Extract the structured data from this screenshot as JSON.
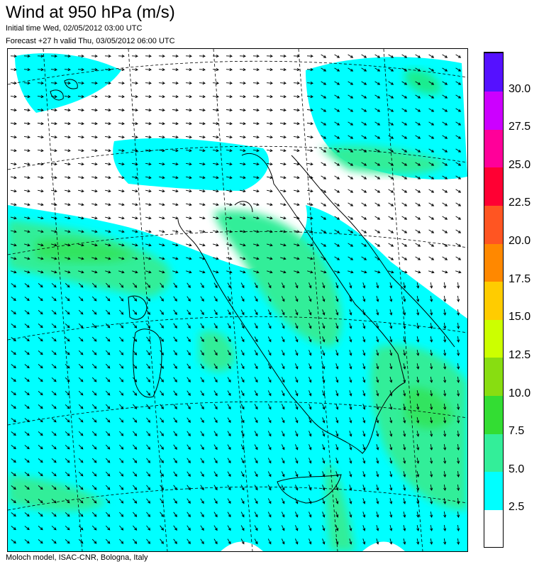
{
  "header": {
    "title": "Wind at 950 hPa (m/s)",
    "initial_time": "Initial time  Wed, 02/05/2012 03:00 UTC",
    "forecast": "Forecast +27 h valid  Thu, 03/05/2012 06:00 UTC"
  },
  "footer": {
    "credit": "Moloch model, ISAC-CNR, Bologna, Italy"
  },
  "legend": {
    "labels": [
      "2.5",
      "5.0",
      "7.5",
      "10.0",
      "12.5",
      "15.0",
      "17.5",
      "20.0",
      "22.5",
      "25.0",
      "27.5",
      "30.0"
    ],
    "colors": [
      "#ffffff",
      "#00ffff",
      "#33ee99",
      "#33dd33",
      "#88dd11",
      "#ccff00",
      "#ffcc00",
      "#ff8800",
      "#ff5522",
      "#ff0033",
      "#ff0099",
      "#cc00ff",
      "#5511ff"
    ]
  },
  "map_colors": {
    "sea_background": "#ffffff",
    "coastline": "#000000",
    "graticule": "#000000",
    "arrow": "#000000"
  }
}
